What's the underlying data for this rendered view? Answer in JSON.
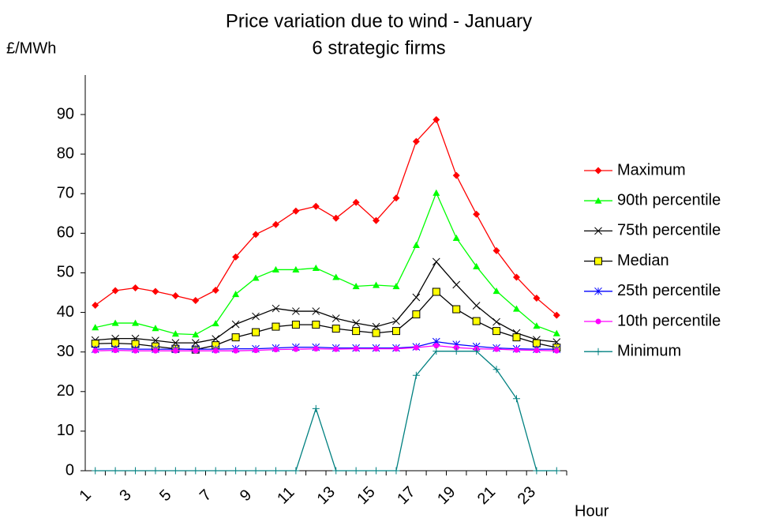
{
  "chart_data": {
    "type": "line",
    "title": "Price variation due to wind - January",
    "subtitle": "6 strategic firms",
    "y_label": "£/MWh",
    "x_label": "Hour",
    "categories": [
      "1",
      null,
      "3",
      null,
      "5",
      null,
      "7",
      null,
      "9",
      null,
      "11",
      null,
      "13",
      null,
      "15",
      null,
      "17",
      null,
      "19",
      null,
      "21",
      null,
      "23",
      null
    ],
    "ylim": [
      0,
      90
    ],
    "yticks": [
      0,
      10,
      20,
      30,
      40,
      50,
      60,
      70,
      80,
      90
    ],
    "legend": "right",
    "series": [
      {
        "name": "Maximum",
        "color": "#ff0000",
        "marker": "diamond",
        "values": [
          41.8,
          45.5,
          46.2,
          45.3,
          44.2,
          43.0,
          45.6,
          54.0,
          59.7,
          62.2,
          65.6,
          66.8,
          63.8,
          67.8,
          63.2,
          68.9,
          83.2,
          88.7,
          74.6,
          64.8,
          55.6,
          48.9,
          43.6,
          39.3
        ]
      },
      {
        "name": "90th percentile",
        "color": "#00ff00",
        "marker": "triangle",
        "values": [
          36.2,
          37.3,
          37.3,
          36.0,
          34.6,
          34.4,
          37.2,
          44.6,
          48.7,
          50.8,
          50.8,
          51.2,
          48.9,
          46.6,
          46.9,
          46.6,
          57.0,
          70.2,
          58.8,
          51.6,
          45.4,
          40.9,
          36.6,
          34.7
        ]
      },
      {
        "name": "75th percentile",
        "color": "#000000",
        "marker": "x",
        "values": [
          33.0,
          33.4,
          33.4,
          32.9,
          32.3,
          32.3,
          33.3,
          37.0,
          39.0,
          41.0,
          40.3,
          40.3,
          38.5,
          37.3,
          36.4,
          37.8,
          43.8,
          52.8,
          47.0,
          41.7,
          37.6,
          34.8,
          33.1,
          32.5
        ]
      },
      {
        "name": "Median",
        "color": "#000000",
        "marker": "square",
        "values": [
          32.1,
          32.2,
          32.0,
          31.4,
          30.8,
          30.6,
          31.7,
          33.7,
          35.0,
          36.4,
          36.9,
          36.9,
          35.9,
          35.3,
          34.8,
          35.3,
          39.5,
          45.2,
          40.8,
          37.8,
          35.3,
          33.7,
          32.2,
          31.1
        ]
      },
      {
        "name": "25th percentile",
        "color": "#0000ff",
        "marker": "asterisk",
        "values": [
          30.7,
          30.8,
          30.7,
          30.7,
          30.7,
          30.7,
          30.7,
          30.8,
          30.8,
          31.0,
          31.2,
          31.2,
          31.0,
          31.0,
          31.0,
          31.0,
          31.3,
          32.6,
          31.9,
          31.4,
          31.0,
          30.8,
          30.7,
          30.7
        ]
      },
      {
        "name": "10th percentile",
        "color": "#ff00ff",
        "marker": "circle",
        "values": [
          30.3,
          30.4,
          30.3,
          30.3,
          30.3,
          30.3,
          30.3,
          30.3,
          30.4,
          30.6,
          30.7,
          30.8,
          30.7,
          30.8,
          30.8,
          30.8,
          31.1,
          31.6,
          31.1,
          30.8,
          30.7,
          30.5,
          30.4,
          30.3
        ]
      },
      {
        "name": "Minimum",
        "color": "#008080",
        "marker": "plus",
        "values": [
          0,
          0,
          0,
          0,
          0,
          0,
          0,
          0,
          0,
          0,
          0,
          15.7,
          0,
          0,
          0,
          0,
          24.1,
          30.2,
          30.2,
          30.2,
          25.6,
          18.2,
          0,
          0
        ]
      }
    ]
  }
}
